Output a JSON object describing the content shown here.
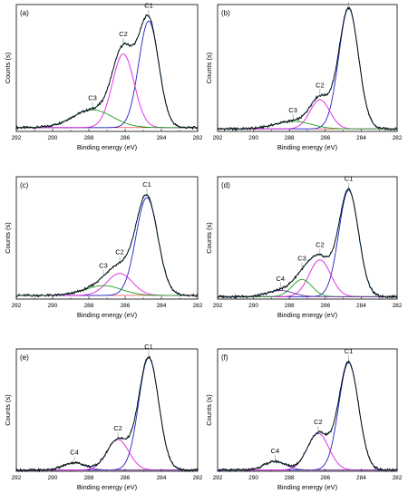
{
  "chart_data": [
    {
      "type": "line",
      "panel_label": "(a)",
      "xlabel": "Binding energy (eV)",
      "ylabel": "Counts (s)",
      "xlim": [
        292,
        282
      ],
      "x_ticks": [
        292,
        290,
        288,
        286,
        284,
        282
      ],
      "ylim": [
        0,
        100
      ],
      "peaks": [
        {
          "name": "C1",
          "center": 284.7,
          "height": 84,
          "width": 0.55,
          "color": "#2020c8"
        },
        {
          "name": "C2",
          "center": 286.1,
          "height": 58,
          "width": 0.6,
          "color": "#e020e0"
        },
        {
          "name": "C3",
          "center": 287.8,
          "height": 14,
          "width": 1.1,
          "color": "#20a020"
        }
      ],
      "baseline": 3
    },
    {
      "type": "line",
      "panel_label": "(b)",
      "xlabel": "Binding energy (eV)",
      "ylabel": "Counts (s)",
      "xlim": [
        292,
        282
      ],
      "x_ticks": [
        292,
        290,
        288,
        286,
        284,
        282
      ],
      "ylim": [
        0,
        100
      ],
      "peaks": [
        {
          "name": "C1",
          "center": 284.7,
          "height": 95,
          "width": 0.55,
          "color": "#2020c8"
        },
        {
          "name": "C2",
          "center": 286.3,
          "height": 23,
          "width": 0.55,
          "color": "#e020e0"
        },
        {
          "name": "C3",
          "center": 287.8,
          "height": 6,
          "width": 1.0,
          "color": "#20a020"
        }
      ],
      "baseline": 2
    },
    {
      "type": "line",
      "panel_label": "(c)",
      "xlabel": "Binding energy (eV)",
      "ylabel": "Counts (s)",
      "xlim": [
        292,
        282
      ],
      "x_ticks": [
        292,
        290,
        288,
        286,
        284,
        282
      ],
      "ylim": [
        0,
        100
      ],
      "peaks": [
        {
          "name": "C1",
          "center": 284.8,
          "height": 80,
          "width": 0.6,
          "color": "#2020c8"
        },
        {
          "name": "C2",
          "center": 286.3,
          "height": 18,
          "width": 0.7,
          "color": "#e020e0"
        },
        {
          "name": "C3",
          "center": 287.2,
          "height": 8,
          "width": 1.0,
          "color": "#20a020"
        }
      ],
      "baseline": 3
    },
    {
      "type": "line",
      "panel_label": "(d)",
      "xlabel": "Binding energy (eV)",
      "ylabel": "Counts (s)",
      "xlim": [
        292,
        282
      ],
      "x_ticks": [
        292,
        290,
        288,
        286,
        284,
        282
      ],
      "ylim": [
        0,
        100
      ],
      "peaks": [
        {
          "name": "C1",
          "center": 284.7,
          "height": 87,
          "width": 0.55,
          "color": "#2020c8"
        },
        {
          "name": "C2",
          "center": 286.3,
          "height": 30,
          "width": 0.6,
          "color": "#e020e0"
        },
        {
          "name": "C3",
          "center": 287.3,
          "height": 14,
          "width": 0.55,
          "color": "#20a020"
        },
        {
          "name": "C4",
          "center": 288.5,
          "height": 5,
          "width": 0.7,
          "color": "#6030a0"
        }
      ],
      "baseline": 2
    },
    {
      "type": "line",
      "panel_label": "(e)",
      "xlabel": "Binding energy (eV)",
      "ylabel": "Counts (s)",
      "xlim": [
        292,
        282
      ],
      "x_ticks": [
        292,
        290,
        288,
        286,
        284,
        282
      ],
      "ylim": [
        0,
        100
      ],
      "peaks": [
        {
          "name": "C1",
          "center": 284.7,
          "height": 92,
          "width": 0.55,
          "color": "#2020c8"
        },
        {
          "name": "C2",
          "center": 286.4,
          "height": 25,
          "width": 0.6,
          "color": "#e020e0"
        },
        {
          "name": "C4",
          "center": 288.8,
          "height": 6,
          "width": 0.6,
          "color": "#6030a0"
        }
      ],
      "baseline": 1
    },
    {
      "type": "line",
      "panel_label": "(f)",
      "xlabel": "Binding energy (eV)",
      "ylabel": "Counts (s)",
      "xlim": [
        292,
        282
      ],
      "x_ticks": [
        292,
        290,
        288,
        286,
        284,
        282
      ],
      "ylim": [
        0,
        100
      ],
      "peaks": [
        {
          "name": "C1",
          "center": 284.7,
          "height": 88,
          "width": 0.55,
          "color": "#2020c8"
        },
        {
          "name": "C2",
          "center": 286.4,
          "height": 30,
          "width": 0.6,
          "color": "#e020e0"
        },
        {
          "name": "C4",
          "center": 288.8,
          "height": 7,
          "width": 0.6,
          "color": "#6030a0"
        }
      ],
      "baseline": 1
    }
  ]
}
